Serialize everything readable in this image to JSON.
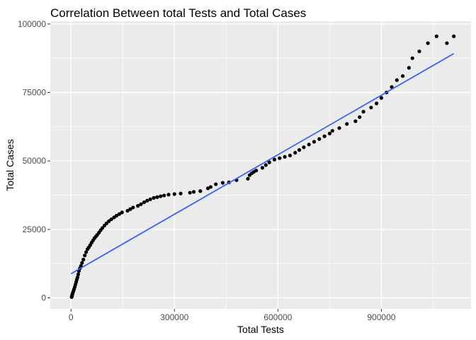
{
  "chart_data": {
    "type": "scatter",
    "title": "Correlation Between total Tests and Total Cases",
    "xlabel": "Total Tests",
    "ylabel": "Total Cases",
    "xlim": [
      -60000,
      1160000
    ],
    "ylim": [
      -4000,
      101000
    ],
    "x_ticks": [
      0,
      300000,
      600000,
      900000
    ],
    "x_tick_labels": [
      "0",
      "300000",
      "600000",
      "900000"
    ],
    "y_ticks": [
      0,
      25000,
      50000,
      75000,
      100000
    ],
    "y_tick_labels": [
      "0",
      "25000",
      "50000",
      "75000",
      "100000"
    ],
    "grid": true,
    "panel_background": "#ebebeb",
    "grid_color": "#ffffff",
    "point_color": "#000000",
    "trend_line": {
      "method": "linear",
      "color": "#3366ff",
      "x": [
        0,
        1110000
      ],
      "y": [
        8800,
        89200
      ]
    },
    "points": {
      "x": [
        2000,
        3000,
        4000,
        5000,
        7000,
        9000,
        11000,
        13000,
        15000,
        17000,
        19000,
        21000,
        23000,
        26000,
        29000,
        32000,
        36000,
        40000,
        44000,
        48000,
        52000,
        56000,
        60000,
        64000,
        68000,
        72000,
        76000,
        81000,
        86000,
        91000,
        97000,
        103000,
        110000,
        117000,
        125000,
        132000,
        140000,
        148000,
        164000,
        172000,
        180000,
        194000,
        203000,
        212000,
        221000,
        230000,
        240000,
        250000,
        260000,
        270000,
        283000,
        300000,
        318000,
        345000,
        356000,
        375000,
        397000,
        405000,
        420000,
        440000,
        458000,
        480000,
        513000,
        518000,
        524000,
        530000,
        537000,
        555000,
        565000,
        575000,
        590000,
        605000,
        620000,
        635000,
        650000,
        662000,
        675000,
        690000,
        705000,
        720000,
        735000,
        750000,
        758000,
        778000,
        800000,
        825000,
        837000,
        848000,
        870000,
        886000,
        900000,
        915000,
        930000,
        945000,
        962000,
        980000,
        990000,
        1010000,
        1035000,
        1060000,
        1090000,
        1110000
      ],
      "y": [
        300,
        800,
        1300,
        1800,
        2500,
        3200,
        4000,
        4900,
        5800,
        6700,
        7500,
        8600,
        9800,
        10800,
        11700,
        12800,
        14000,
        15500,
        16700,
        17800,
        18500,
        19300,
        20200,
        21000,
        21800,
        22400,
        23000,
        23800,
        24700,
        25500,
        26400,
        27200,
        28000,
        28700,
        29400,
        30000,
        30600,
        31200,
        31800,
        32400,
        33000,
        33600,
        34200,
        34900,
        35500,
        36000,
        36500,
        36800,
        37100,
        37400,
        37700,
        37900,
        38100,
        38400,
        38700,
        39000,
        40000,
        40500,
        41500,
        42000,
        42200,
        43000,
        43500,
        44800,
        45500,
        46000,
        46500,
        47500,
        48500,
        49500,
        50500,
        51000,
        51500,
        52000,
        53000,
        54000,
        55000,
        56000,
        57000,
        58000,
        59000,
        60000,
        61000,
        62000,
        63500,
        64500,
        66000,
        68000,
        69500,
        71000,
        73000,
        75000,
        77000,
        79500,
        81000,
        84000,
        87500,
        90000,
        93000,
        95500,
        93000,
        95500
      ]
    }
  }
}
